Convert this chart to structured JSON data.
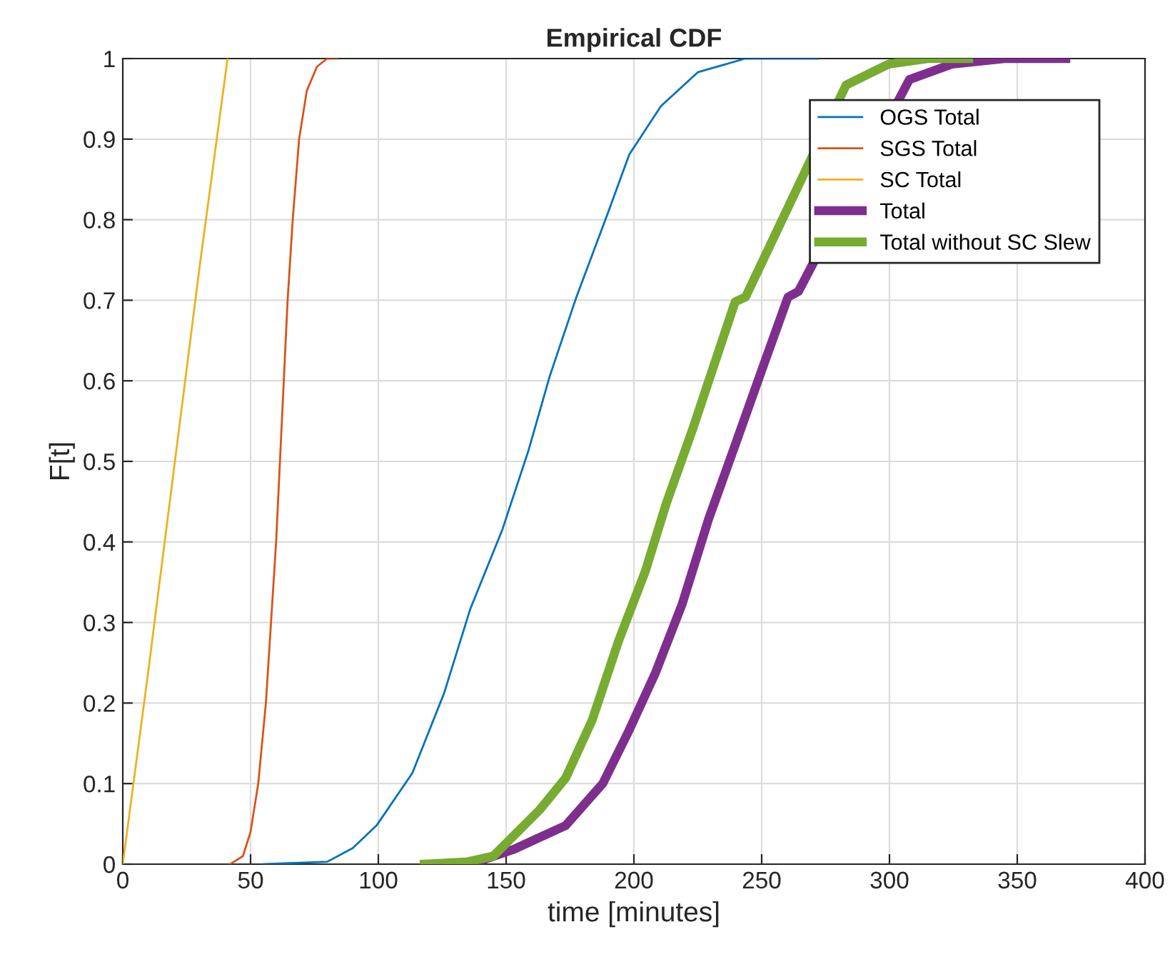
{
  "chart_data": {
    "type": "step",
    "title": "Empirical CDF",
    "xlabel": "time [minutes]",
    "ylabel": "F[t]",
    "xlim": [
      0,
      400
    ],
    "ylim": [
      0,
      1
    ],
    "xticks": [
      0,
      50,
      100,
      150,
      200,
      250,
      300,
      350,
      400
    ],
    "yticks": [
      0,
      0.1,
      0.2,
      0.3,
      0.4,
      0.5,
      0.6,
      0.7,
      0.8,
      0.9,
      1
    ],
    "grid": true,
    "legend": "top right",
    "marker": "none",
    "line_style": "solid",
    "series": [
      {
        "name": "OGS Total",
        "color": "#0072bd",
        "x": [
          55,
          80,
          90,
          99.3,
          113.3,
          125.7,
          136,
          148.5,
          158.8,
          167.1,
          177.5,
          189.9,
          198.2,
          210.6,
          225,
          243.6,
          272
        ],
        "values": [
          0,
          0.003,
          0.02,
          0.048,
          0.113,
          0.212,
          0.317,
          0.415,
          0.514,
          0.606,
          0.704,
          0.809,
          0.881,
          0.941,
          0.983,
          1,
          1
        ]
      },
      {
        "name": "SGS Total",
        "color": "#d95319",
        "x": [
          42,
          47,
          50,
          53,
          56,
          58,
          60,
          61.5,
          63,
          64.5,
          66.5,
          69,
          72,
          76,
          80,
          84
        ],
        "values": [
          0,
          0.01,
          0.04,
          0.1,
          0.2,
          0.3,
          0.4,
          0.5,
          0.6,
          0.7,
          0.8,
          0.9,
          0.96,
          0.99,
          1,
          1
        ]
      },
      {
        "name": "SC Total",
        "color": "#edb120",
        "x": [
          0,
          10,
          20,
          30,
          41
        ],
        "values": [
          0,
          0.24,
          0.49,
          0.74,
          1
        ]
      },
      {
        "name": "Total",
        "color": "#7e2f8e",
        "x": [
          136,
          152.7,
          173.3,
          187.8,
          198.1,
          208.5,
          218.9,
          229.2,
          239.6,
          249.9,
          260.3,
          264.4,
          307.8,
          324.4,
          345,
          369
        ],
        "values": [
          0,
          0.018,
          0.048,
          0.1,
          0.166,
          0.238,
          0.323,
          0.428,
          0.52,
          0.612,
          0.704,
          0.711,
          0.974,
          0.993,
          1,
          1
        ]
      },
      {
        "name": "Total without SC Slew",
        "color": "#77ac30",
        "x": [
          118,
          135,
          145,
          163,
          173.3,
          183.7,
          194,
          204.4,
          212.7,
          223,
          231.3,
          239.6,
          243.7,
          283,
          299.6,
          315,
          331
        ],
        "values": [
          0,
          0.003,
          0.01,
          0.067,
          0.107,
          0.179,
          0.277,
          0.363,
          0.448,
          0.54,
          0.619,
          0.698,
          0.704,
          0.967,
          0.993,
          1,
          1
        ]
      }
    ]
  }
}
